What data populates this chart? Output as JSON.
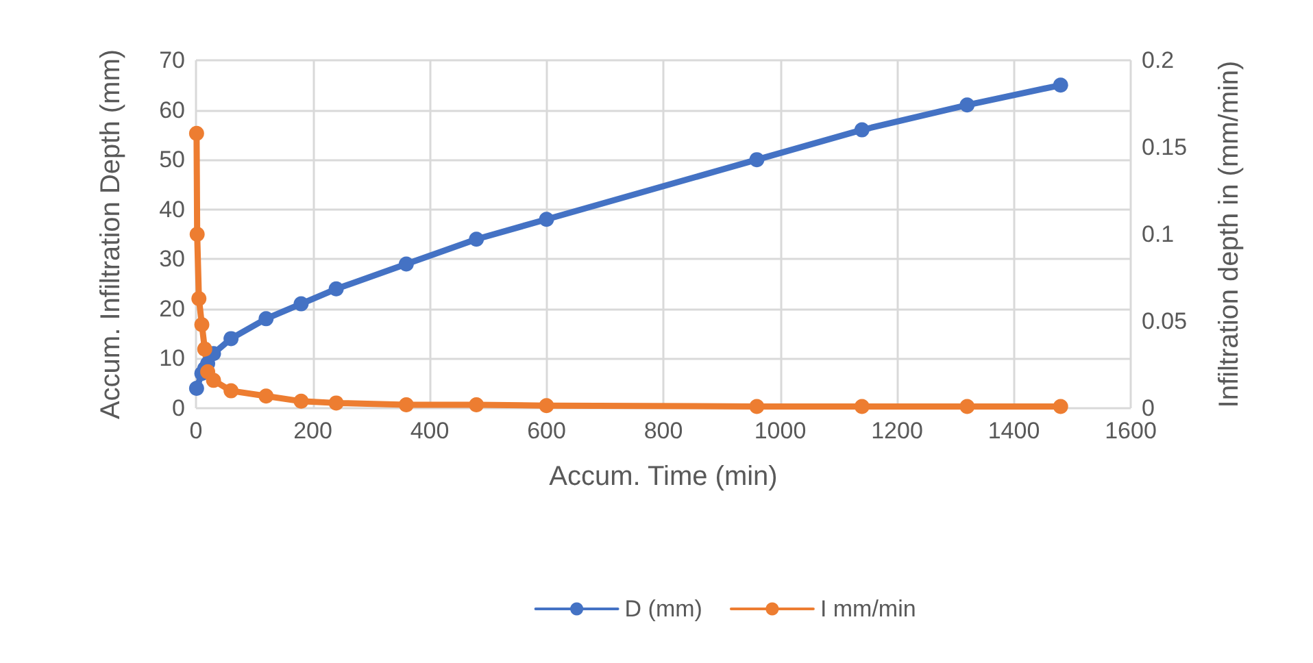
{
  "chart_data": {
    "type": "line",
    "x": [
      1,
      2,
      5,
      10,
      15,
      20,
      30,
      60,
      120,
      180,
      240,
      360,
      480,
      600,
      960,
      1140,
      1320,
      1480
    ],
    "series": [
      {
        "name": "D (mm)",
        "color": "#4472c4",
        "values": [
          4,
          null,
          null,
          7,
          8,
          9,
          11,
          14,
          18,
          21,
          24,
          29,
          34,
          38,
          50,
          56,
          61,
          65
        ]
      },
      {
        "name": "I mm/min",
        "color": "#ed7d31",
        "axis": "y2",
        "values": [
          0.158,
          0.1,
          0.063,
          0.048,
          0.034,
          0.021,
          0.016,
          0.01,
          0.007,
          0.004,
          0.003,
          0.002,
          0.002,
          0.0015,
          0.001,
          0.001,
          0.001,
          0.001
        ]
      }
    ],
    "xlabel": "Accum. Time (min)",
    "ylabel": "Accum. Infiltration Depth (mm)",
    "y2label": "Infiltration depth in (mm/min)",
    "xlim": [
      0,
      1600
    ],
    "xticks": [
      0,
      200,
      400,
      600,
      800,
      1000,
      1200,
      1400,
      1600
    ],
    "ylim": [
      0,
      70
    ],
    "yticks": [
      0,
      10,
      20,
      30,
      40,
      50,
      60,
      70
    ],
    "y2lim": [
      0,
      0.2
    ],
    "y2ticks": [
      0,
      0.05,
      0.1,
      0.15,
      0.2
    ],
    "grid": true,
    "legend": "bottom",
    "marker": "circle",
    "line_style": "solid"
  }
}
